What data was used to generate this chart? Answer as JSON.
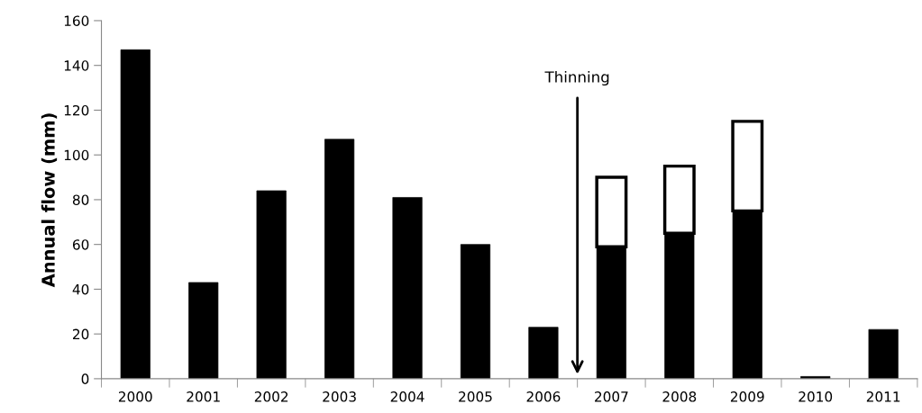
{
  "chart_data": {
    "type": "bar",
    "stacked": true,
    "ylabel": "Annual flow (mm)",
    "categories": [
      "2000",
      "2001",
      "2002",
      "2003",
      "2004",
      "2005",
      "2006",
      "2007",
      "2008",
      "2009",
      "2010",
      "2011"
    ],
    "series": [
      {
        "color": "#000000",
        "values": [
          147,
          43,
          84,
          107,
          81,
          60,
          23,
          59,
          65,
          75,
          1,
          22
        ]
      },
      {
        "color": "#ffffff",
        "values": [
          null,
          null,
          null,
          null,
          null,
          null,
          null,
          31,
          30,
          40,
          null,
          null
        ]
      }
    ],
    "ylim": [
      0,
      160
    ],
    "yticks": [
      0,
      20,
      40,
      60,
      80,
      100,
      120,
      140,
      160
    ],
    "grid": false,
    "annotations": [
      "Thinning"
    ]
  }
}
